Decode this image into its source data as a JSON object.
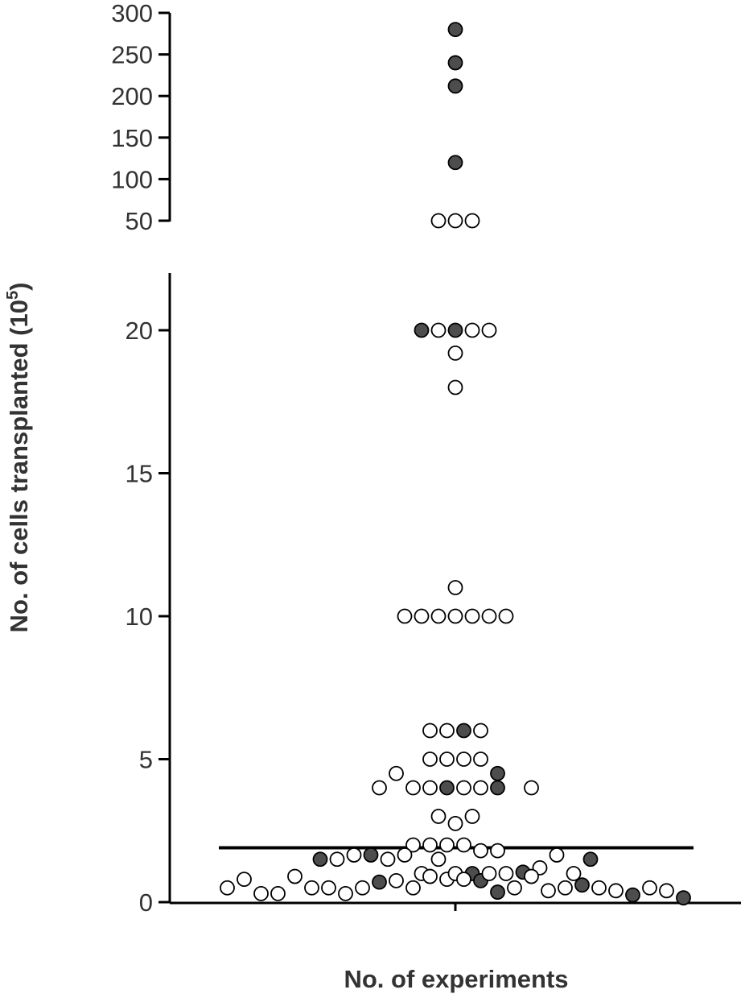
{
  "chart_data": {
    "type": "scatter",
    "xlabel": "No. of experiments",
    "ylabel": "No. of cells transplanted (10",
    "ylabel_superscript": "5",
    "ylabel_close": ")",
    "axis_break": true,
    "upper_segment": {
      "ylim": [
        50,
        300
      ],
      "yticks": [
        50,
        100,
        150,
        200,
        250,
        300
      ]
    },
    "lower_segment": {
      "ylim": [
        0,
        22
      ],
      "yticks": [
        0,
        5,
        10,
        15,
        20
      ]
    },
    "median_line": 1.9,
    "colors": {
      "filled": "#4d4d4d",
      "open": "#ffffff",
      "stroke": "#000000"
    },
    "series": [
      {
        "marker": "filled",
        "points": [
          {
            "x": 0,
            "y": 280
          },
          {
            "x": 0,
            "y": 240
          },
          {
            "x": 0,
            "y": 212
          },
          {
            "x": 0,
            "y": 120
          },
          {
            "x": -2,
            "y": 20
          },
          {
            "x": 0,
            "y": 20
          },
          {
            "x": 0.5,
            "y": 6
          },
          {
            "x": -0.5,
            "y": 4
          },
          {
            "x": 2.5,
            "y": 4
          },
          {
            "x": 2.5,
            "y": 4.5
          },
          {
            "x": -8,
            "y": 1.5
          },
          {
            "x": -5,
            "y": 1.65
          },
          {
            "x": 8,
            "y": 1.5
          },
          {
            "x": 1,
            "y": 1.0
          },
          {
            "x": 4,
            "y": 1.05
          },
          {
            "x": -4.5,
            "y": 0.7
          },
          {
            "x": 1.5,
            "y": 0.75
          },
          {
            "x": 7.5,
            "y": 0.6
          },
          {
            "x": 2.5,
            "y": 0.35
          },
          {
            "x": 10.5,
            "y": 0.25
          },
          {
            "x": 13.5,
            "y": 0.15
          }
        ]
      },
      {
        "marker": "open",
        "points": [
          {
            "x": -1,
            "y": 50
          },
          {
            "x": 0,
            "y": 50
          },
          {
            "x": 1,
            "y": 50
          },
          {
            "x": -1,
            "y": 20
          },
          {
            "x": 1,
            "y": 20
          },
          {
            "x": 2,
            "y": 20
          },
          {
            "x": 0,
            "y": 19.2
          },
          {
            "x": 0,
            "y": 18
          },
          {
            "x": 0,
            "y": 11
          },
          {
            "x": -3,
            "y": 10
          },
          {
            "x": -2,
            "y": 10
          },
          {
            "x": -1,
            "y": 10
          },
          {
            "x": 0,
            "y": 10
          },
          {
            "x": 1,
            "y": 10
          },
          {
            "x": 2,
            "y": 10
          },
          {
            "x": 3,
            "y": 10
          },
          {
            "x": -1.5,
            "y": 6
          },
          {
            "x": -0.5,
            "y": 6
          },
          {
            "x": 1.5,
            "y": 6
          },
          {
            "x": -1.5,
            "y": 5
          },
          {
            "x": -0.5,
            "y": 5
          },
          {
            "x": 0.5,
            "y": 5
          },
          {
            "x": 1.5,
            "y": 5
          },
          {
            "x": -3.5,
            "y": 4.5
          },
          {
            "x": -4.5,
            "y": 4
          },
          {
            "x": -2.5,
            "y": 4
          },
          {
            "x": -1.5,
            "y": 4
          },
          {
            "x": 0.5,
            "y": 4
          },
          {
            "x": 1.5,
            "y": 4
          },
          {
            "x": 4.5,
            "y": 4
          },
          {
            "x": -1,
            "y": 3
          },
          {
            "x": 1,
            "y": 3
          },
          {
            "x": 0,
            "y": 2.75
          },
          {
            "x": -2.5,
            "y": 2
          },
          {
            "x": -1.5,
            "y": 2
          },
          {
            "x": -0.5,
            "y": 2
          },
          {
            "x": 0.5,
            "y": 2
          },
          {
            "x": 1.5,
            "y": 1.8
          },
          {
            "x": 2.5,
            "y": 1.8
          },
          {
            "x": -7,
            "y": 1.5
          },
          {
            "x": -6,
            "y": 1.65
          },
          {
            "x": -4,
            "y": 1.5
          },
          {
            "x": -3,
            "y": 1.65
          },
          {
            "x": -1,
            "y": 1.5
          },
          {
            "x": 6,
            "y": 1.65
          },
          {
            "x": 5,
            "y": 1.2
          },
          {
            "x": -13.5,
            "y": 0.5
          },
          {
            "x": -12.5,
            "y": 0.8
          },
          {
            "x": -11.5,
            "y": 0.3
          },
          {
            "x": -10.5,
            "y": 0.3
          },
          {
            "x": -9.5,
            "y": 0.9
          },
          {
            "x": -8.5,
            "y": 0.5
          },
          {
            "x": -7.5,
            "y": 0.5
          },
          {
            "x": -6.5,
            "y": 0.3
          },
          {
            "x": -5.5,
            "y": 0.5
          },
          {
            "x": -3.5,
            "y": 0.75
          },
          {
            "x": -2.5,
            "y": 0.5
          },
          {
            "x": -2,
            "y": 1.0
          },
          {
            "x": -1.5,
            "y": 0.9
          },
          {
            "x": -0.5,
            "y": 0.8
          },
          {
            "x": 0,
            "y": 1.0
          },
          {
            "x": 0.5,
            "y": 0.8
          },
          {
            "x": 2,
            "y": 1.0
          },
          {
            "x": 3,
            "y": 1.0
          },
          {
            "x": 3.5,
            "y": 0.5
          },
          {
            "x": 4.5,
            "y": 0.9
          },
          {
            "x": 5.5,
            "y": 0.4
          },
          {
            "x": 6.5,
            "y": 0.5
          },
          {
            "x": 7,
            "y": 1.0
          },
          {
            "x": 8.5,
            "y": 0.5
          },
          {
            "x": 9.5,
            "y": 0.4
          },
          {
            "x": 11.5,
            "y": 0.5
          },
          {
            "x": 12.5,
            "y": 0.4
          }
        ]
      }
    ]
  }
}
